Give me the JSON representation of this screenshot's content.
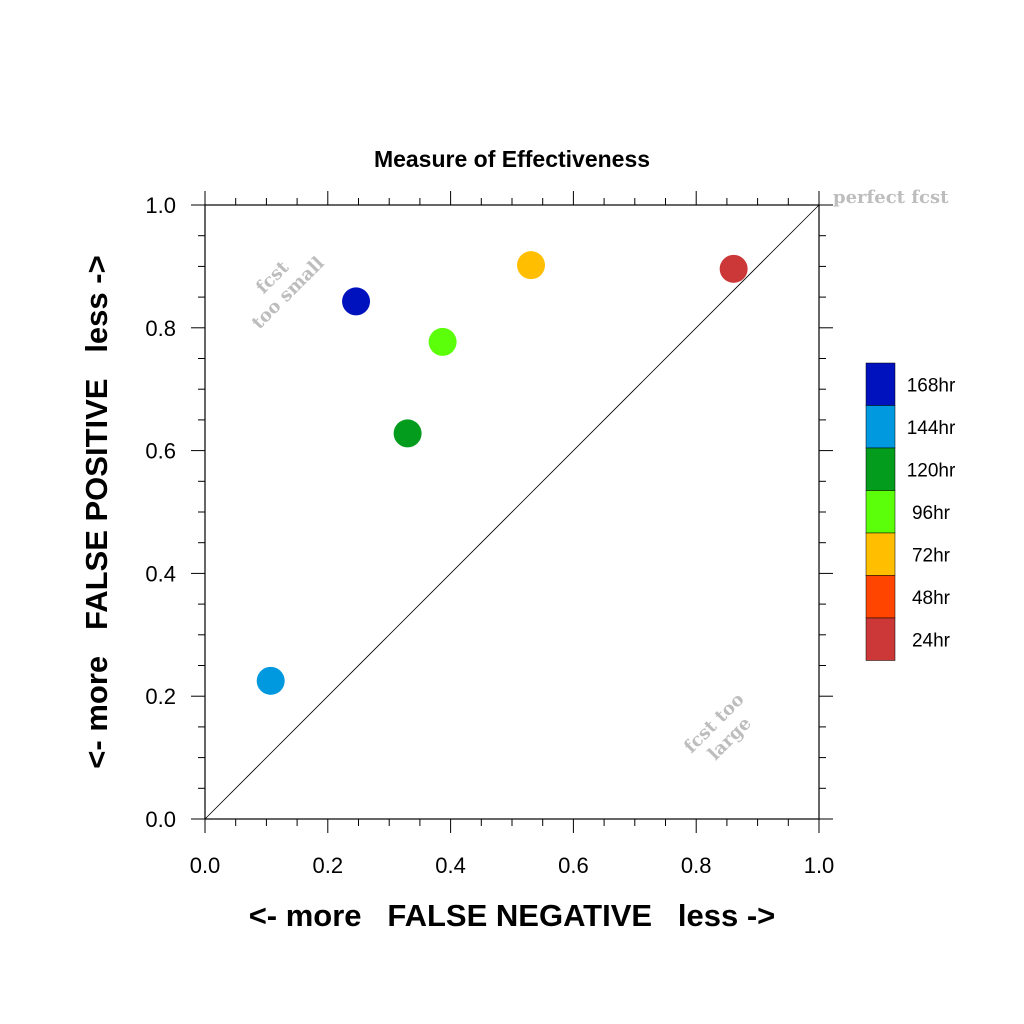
{
  "chart_data": {
    "type": "scatter",
    "title": "Measure of Effectiveness",
    "xlabel": "<- more   FALSE NEGATIVE   less ->",
    "ylabel": "<- more   FALSE POSITIVE   less ->",
    "xlim": [
      0,
      1
    ],
    "ylim": [
      0,
      1
    ],
    "xticks": [
      "0.0",
      "0.2",
      "0.4",
      "0.6",
      "0.8",
      "1.0"
    ],
    "yticks": [
      "0.0",
      "0.2",
      "0.4",
      "0.6",
      "0.8",
      "1.0"
    ],
    "grid": false,
    "legend_position": "right",
    "reference_line": {
      "from": [
        0,
        0
      ],
      "to": [
        1,
        1
      ]
    },
    "annotations": {
      "perfect": "perfect fcst",
      "too_small_1": "fcst",
      "too_small_2": "too small",
      "too_large_1": "fcst too",
      "too_large_2": "large"
    },
    "series": [
      {
        "name": "168hr",
        "color": "#0012be",
        "x": [
          0.246
        ],
        "y": [
          0.843
        ]
      },
      {
        "name": "144hr",
        "color": "#0099e0",
        "x": [
          0.107
        ],
        "y": [
          0.225
        ]
      },
      {
        "name": "120hr",
        "color": "#039c1c",
        "x": [
          0.33
        ],
        "y": [
          0.628
        ]
      },
      {
        "name": "96hr",
        "color": "#5cff0a",
        "x": [
          0.387
        ],
        "y": [
          0.777
        ]
      },
      {
        "name": "72hr",
        "color": "#ffbf00",
        "x": [
          0.531
        ],
        "y": [
          0.902
        ]
      },
      {
        "name": "48hr",
        "color": "#ff4500",
        "x": [],
        "y": []
      },
      {
        "name": "24hr",
        "color": "#cc3838",
        "x": [
          0.861
        ],
        "y": [
          0.896
        ]
      }
    ]
  }
}
